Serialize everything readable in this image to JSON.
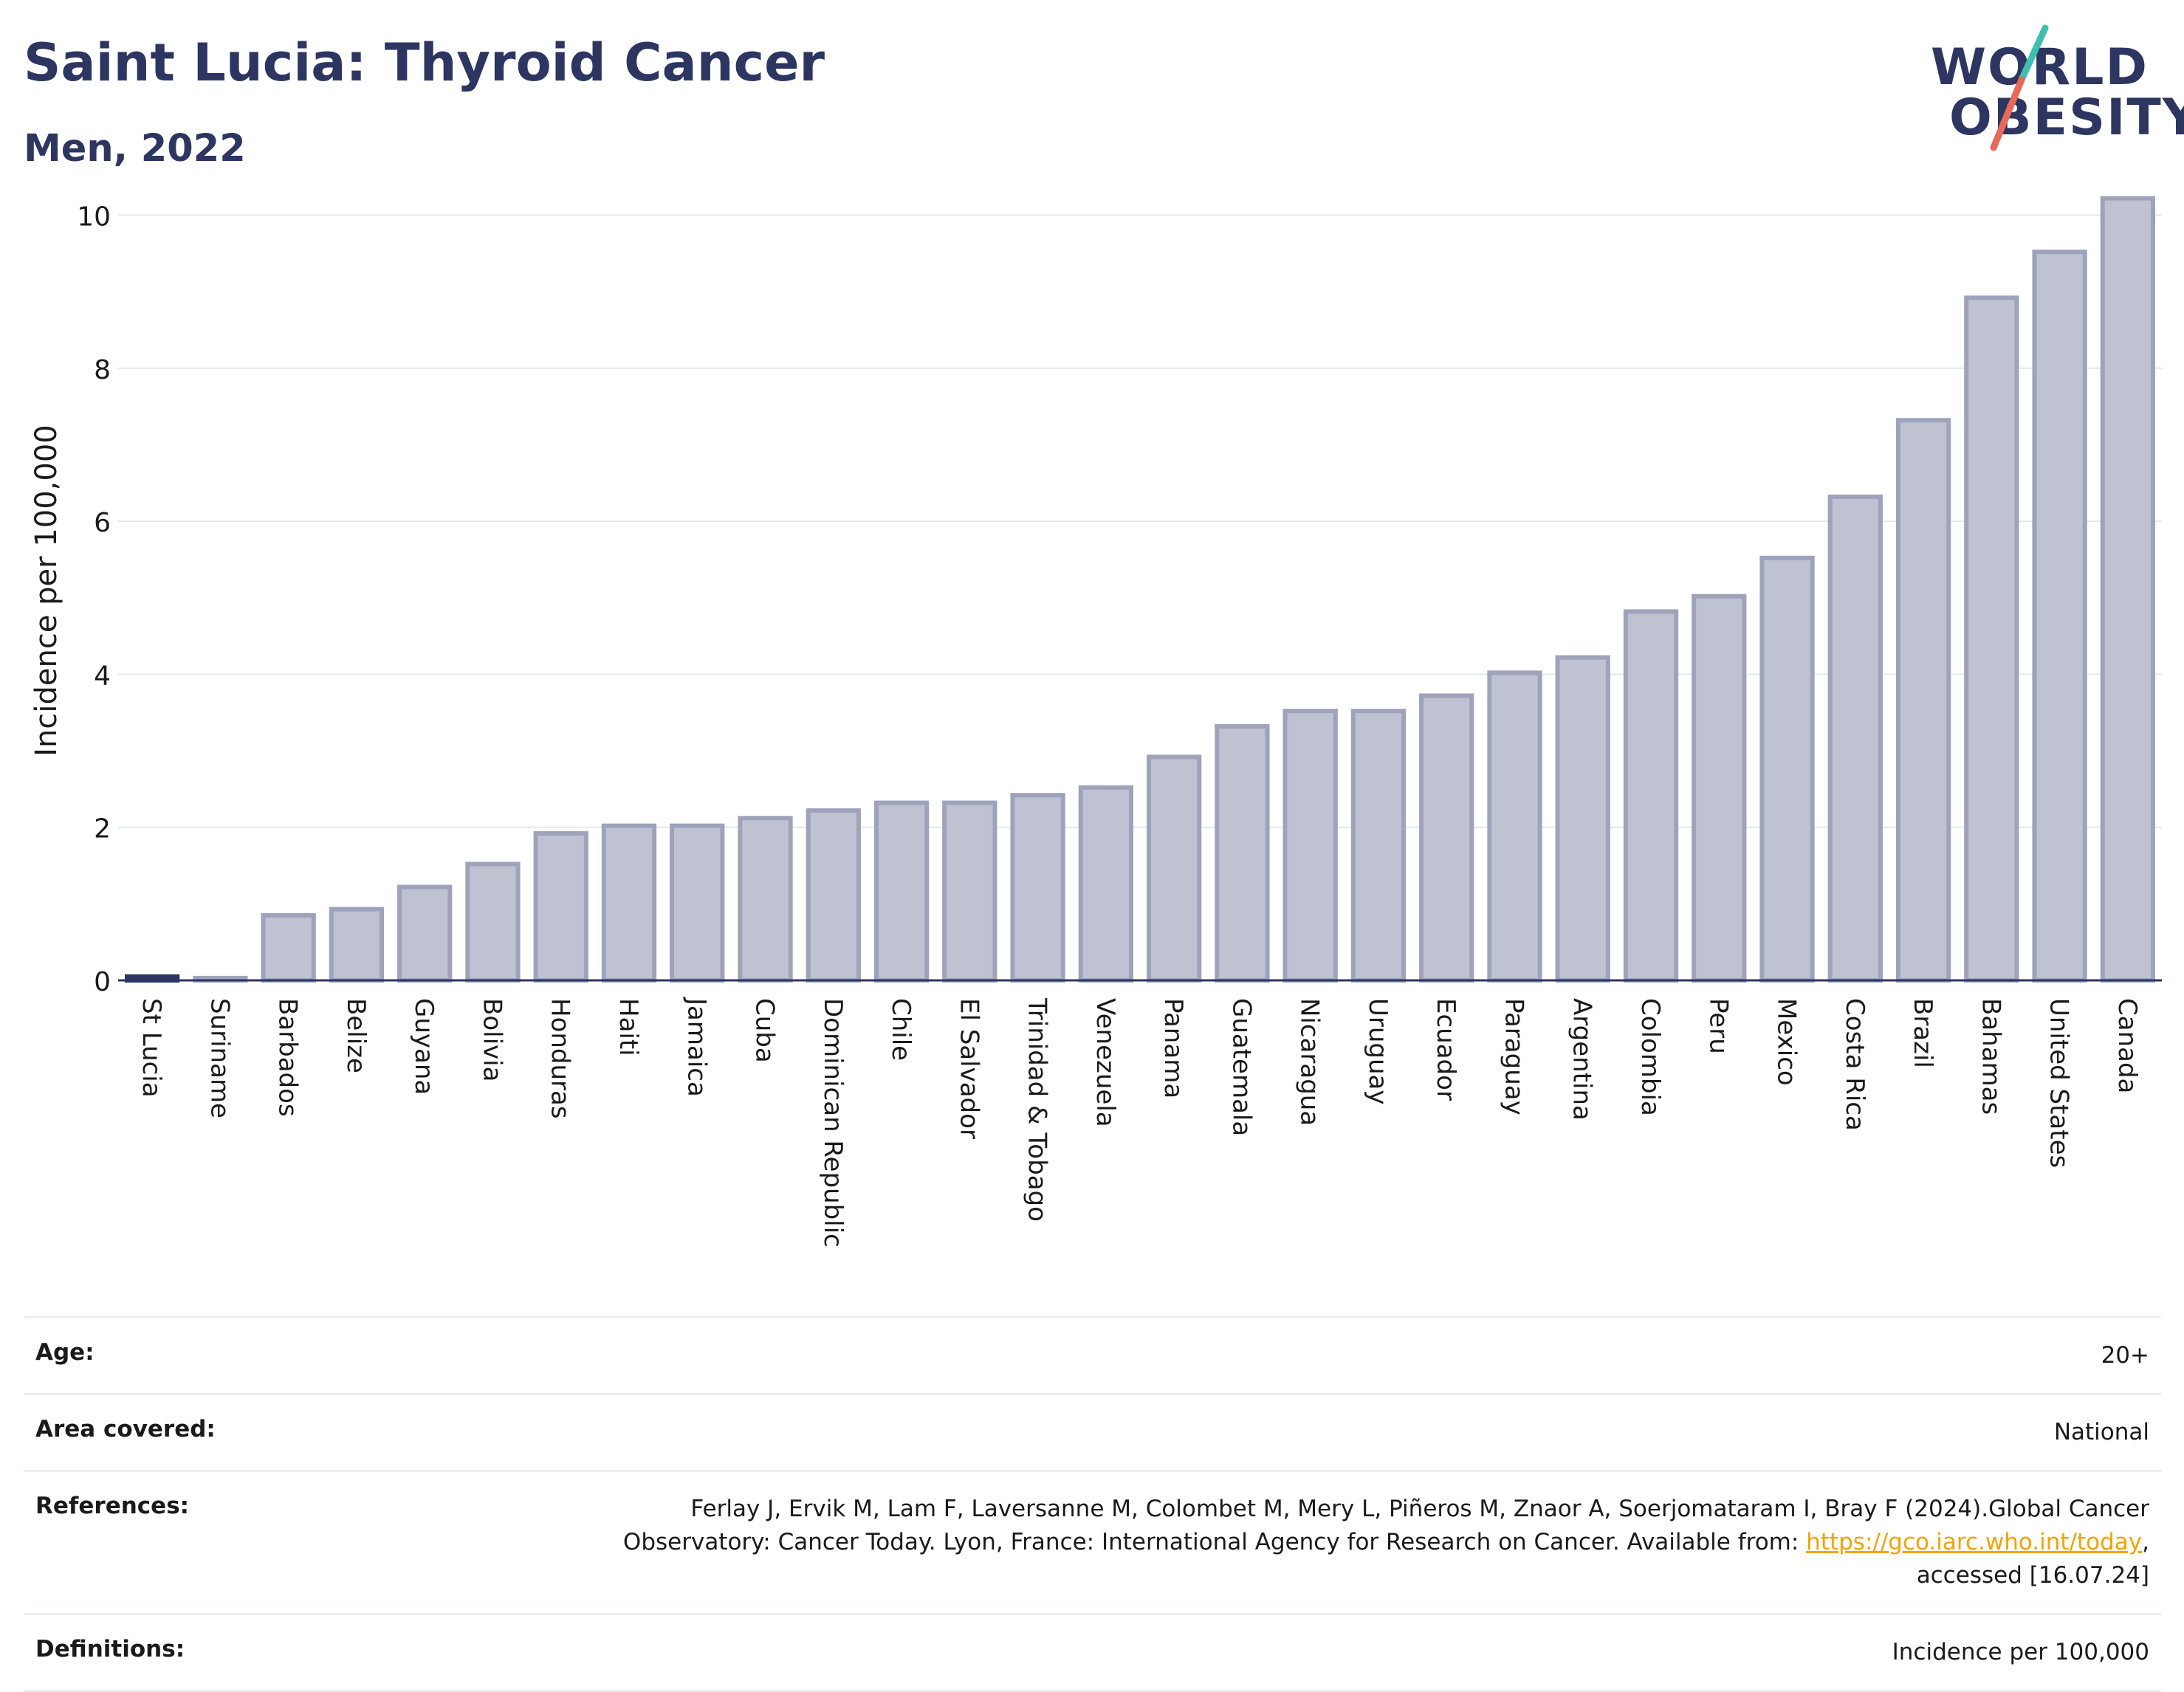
{
  "header": {
    "title": "Saint Lucia: Thyroid Cancer",
    "subtitle": "Men, 2022"
  },
  "logo": {
    "line1": "WORLD",
    "line2": "OBESITY",
    "colors": {
      "text": "#2d3561",
      "slash_top": "#3fbfb0",
      "slash_bottom": "#e8685a"
    }
  },
  "chart_data": {
    "type": "bar",
    "ylabel": "Incidence per 100,000",
    "xlabel": "",
    "ylim": [
      0,
      10.4
    ],
    "yticks": [
      0,
      2,
      4,
      6,
      8,
      10
    ],
    "grid": true,
    "highlight": "St Lucia",
    "colors": {
      "highlight": "#2d3561",
      "bar_fill": "#bfc2d1",
      "bar_stroke": "#9ea3bb"
    },
    "categories": [
      "St Lucia",
      "Suriname",
      "Barbados",
      "Belize",
      "Guyana",
      "Bolivia",
      "Honduras",
      "Haiti",
      "Jamaica",
      "Cuba",
      "Dominican Republic",
      "Chile",
      "El Salvador",
      "Trinidad & Tobago",
      "Venezuela",
      "Panama",
      "Guatemala",
      "Nicaragua",
      "Uruguay",
      "Ecuador",
      "Paraguay",
      "Argentina",
      "Colombia",
      "Peru",
      "Mexico",
      "Costa Rica",
      "Brazil",
      "Bahamas",
      "United States",
      "Canada"
    ],
    "values": [
      0.05,
      0.03,
      0.85,
      0.93,
      1.22,
      1.52,
      1.92,
      2.02,
      2.02,
      2.12,
      2.22,
      2.32,
      2.32,
      2.42,
      2.52,
      2.92,
      3.32,
      3.52,
      3.52,
      3.72,
      4.02,
      4.22,
      4.82,
      5.02,
      5.52,
      6.32,
      7.32,
      8.92,
      9.52,
      10.22
    ]
  },
  "info": {
    "age": {
      "label": "Age:",
      "value": "20+"
    },
    "area": {
      "label": "Area covered:",
      "value": "National"
    },
    "references": {
      "label": "References:",
      "text_before": "Ferlay J, Ervik M, Lam F, Laversanne M, Colombet M, Mery L, Piñeros M, Znaor A, Soerjomataram I, Bray F (2024).Global Cancer Observatory: Cancer Today. Lyon, France: International Agency for Research on Cancer. Available from: ",
      "link": "https://gco.iarc.who.int/today",
      "text_after": ", accessed [16.07.24]"
    },
    "definitions": {
      "label": "Definitions:",
      "value": "Incidence per 100,000"
    }
  }
}
